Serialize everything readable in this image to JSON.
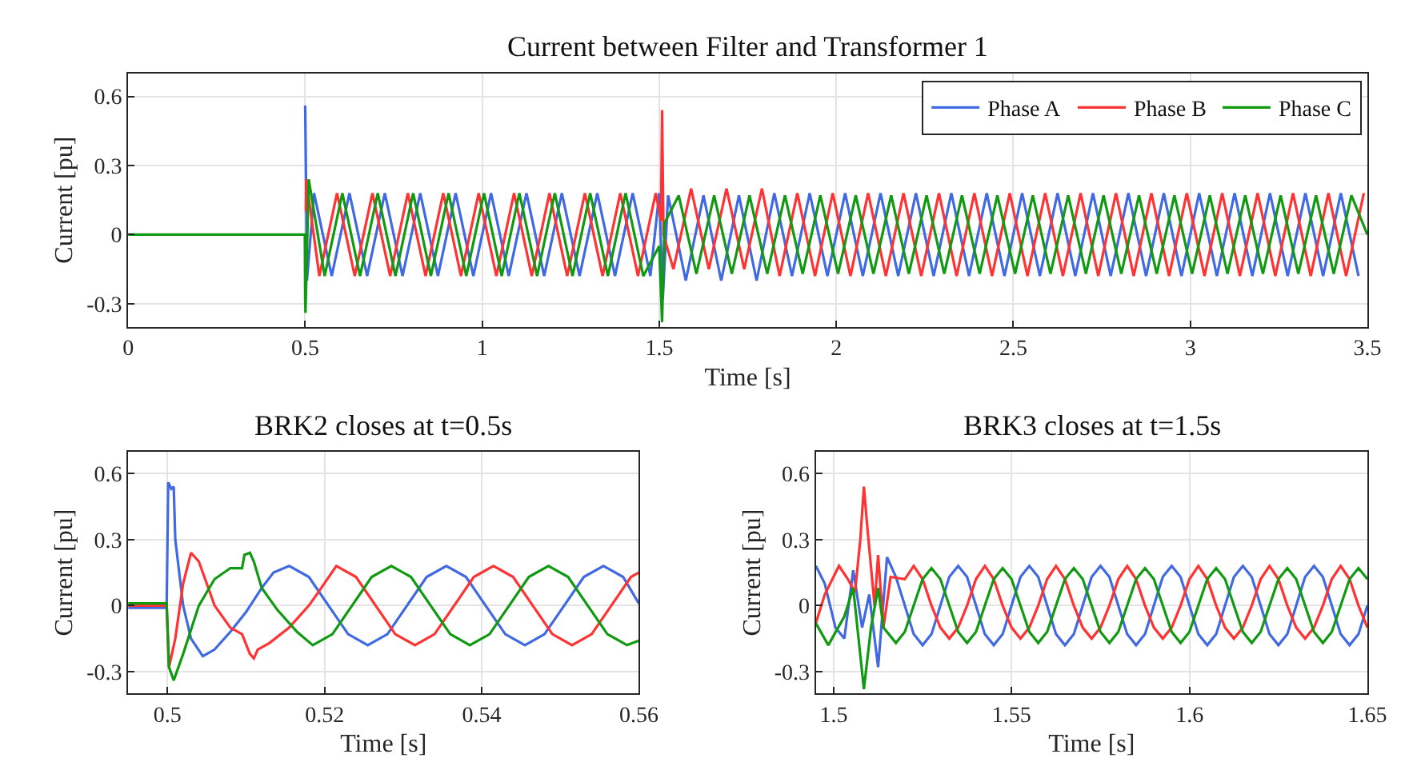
{
  "chart_data": [
    {
      "type": "line",
      "title": "Current between Filter and Transformer 1",
      "xlabel": "Time [s]",
      "ylabel": "Current [pu]",
      "xlim": [
        0,
        3.5
      ],
      "xticks": [
        0,
        0.5,
        1,
        1.5,
        2,
        2.5,
        3,
        3.5
      ],
      "ylim": [
        -0.4,
        0.7
      ],
      "yticks": [
        -0.3,
        0,
        0.3,
        0.6
      ],
      "grid": true,
      "legend": "top right",
      "series": [
        {
          "name": "Phase A",
          "color": "#4169e1",
          "x": [
            0.5,
            0.502,
            0.505,
            0.525,
            0.575,
            0.625,
            0.675,
            0.725,
            0.775,
            0.825,
            0.875,
            0.925,
            0.975,
            1.025,
            1.075,
            1.125,
            1.175,
            1.225,
            1.275,
            1.325,
            1.375,
            1.425,
            1.475,
            1.5,
            1.51,
            1.525,
            1.575,
            1.625,
            1.675,
            1.725,
            1.775,
            1.825,
            1.875,
            1.925,
            1.975,
            2.025,
            2.075,
            2.125,
            2.175,
            2.225,
            2.275,
            2.325,
            2.375,
            2.425,
            2.475,
            2.525,
            2.575,
            2.625,
            2.675,
            2.725,
            2.775,
            2.825,
            2.875,
            2.925,
            2.975,
            3.025,
            3.075,
            3.125,
            3.175,
            3.225,
            3.275,
            3.325,
            3.375,
            3.425,
            3.475
          ],
          "values": [
            0.56,
            0.3,
            -0.2,
            0.18,
            -0.18,
            0.18,
            -0.18,
            0.18,
            -0.18,
            0.18,
            -0.18,
            0.18,
            -0.18,
            0.18,
            -0.18,
            0.18,
            -0.18,
            0.18,
            -0.18,
            0.18,
            -0.18,
            0.18,
            -0.18,
            0.18,
            -0.28,
            0.17,
            -0.2,
            0.17,
            -0.2,
            0.17,
            -0.2,
            0.18,
            -0.18,
            0.18,
            -0.18,
            0.18,
            -0.18,
            0.18,
            -0.18,
            0.18,
            -0.18,
            0.18,
            -0.18,
            0.18,
            -0.18,
            0.18,
            -0.18,
            0.18,
            -0.18,
            0.18,
            -0.18,
            0.18,
            -0.18,
            0.18,
            -0.18,
            0.18,
            -0.18,
            0.18,
            -0.18,
            0.18,
            -0.18,
            0.18,
            -0.18,
            0.18,
            -0.18
          ]
        },
        {
          "name": "Phase B",
          "color": "#ff3333",
          "x": [
            0.502,
            0.503,
            0.54,
            0.59,
            0.64,
            0.69,
            0.74,
            0.79,
            0.84,
            0.89,
            0.94,
            0.99,
            1.04,
            1.09,
            1.14,
            1.19,
            1.24,
            1.29,
            1.34,
            1.39,
            1.44,
            1.49,
            1.505,
            1.508,
            1.512,
            1.54,
            1.59,
            1.64,
            1.69,
            1.74,
            1.79,
            1.84,
            1.89,
            1.94,
            1.99,
            2.04,
            2.09,
            2.14,
            2.19,
            2.24,
            2.29,
            2.34,
            2.39,
            2.44,
            2.49,
            2.54,
            2.59,
            2.64,
            2.69,
            2.74,
            2.79,
            2.84,
            2.89,
            2.94,
            2.99,
            3.04,
            3.09,
            3.14,
            3.19,
            3.24,
            3.29,
            3.34,
            3.39,
            3.44,
            3.49
          ],
          "values": [
            0.1,
            0.24,
            -0.18,
            0.18,
            -0.18,
            0.18,
            -0.18,
            0.18,
            -0.18,
            0.18,
            -0.18,
            0.18,
            -0.18,
            0.18,
            -0.18,
            0.18,
            -0.18,
            0.18,
            -0.18,
            0.18,
            -0.18,
            0.18,
            0.06,
            0.54,
            0,
            -0.15,
            0.2,
            -0.15,
            0.2,
            -0.15,
            0.2,
            -0.18,
            0.18,
            -0.18,
            0.18,
            -0.18,
            0.18,
            -0.18,
            0.18,
            -0.18,
            0.18,
            -0.18,
            0.18,
            -0.18,
            0.18,
            -0.18,
            0.18,
            -0.18,
            0.18,
            -0.18,
            0.18,
            -0.18,
            0.18,
            -0.18,
            0.18,
            -0.18,
            0.18,
            -0.18,
            0.18,
            -0.18,
            0.18,
            -0.18,
            0.18,
            -0.18,
            0.18
          ]
        },
        {
          "name": "Phase C",
          "color": "#119a11",
          "x": [
            0,
            0.4,
            0.499,
            0.5,
            0.5008,
            0.51,
            0.555,
            0.605,
            0.655,
            0.705,
            0.755,
            0.805,
            0.855,
            0.905,
            0.955,
            1.005,
            1.055,
            1.105,
            1.155,
            1.205,
            1.255,
            1.305,
            1.355,
            1.405,
            1.455,
            1.5,
            1.508,
            1.515,
            1.555,
            1.605,
            1.655,
            1.705,
            1.755,
            1.805,
            1.855,
            1.905,
            1.955,
            2.005,
            2.055,
            2.105,
            2.155,
            2.205,
            2.255,
            2.305,
            2.355,
            2.405,
            2.455,
            2.505,
            2.555,
            2.605,
            2.655,
            2.705,
            2.755,
            2.805,
            2.855,
            2.905,
            2.955,
            3.005,
            3.055,
            3.105,
            3.155,
            3.205,
            3.255,
            3.305,
            3.355,
            3.405,
            3.455,
            3.5
          ],
          "values": [
            0,
            0,
            0,
            -0.28,
            -0.34,
            0.24,
            -0.18,
            0.18,
            -0.18,
            0.18,
            -0.18,
            0.18,
            -0.18,
            0.18,
            -0.18,
            0.18,
            -0.18,
            0.18,
            -0.18,
            0.18,
            -0.18,
            0.18,
            -0.18,
            0.18,
            -0.18,
            -0.05,
            -0.38,
            0.05,
            0.17,
            -0.17,
            0.17,
            -0.17,
            0.17,
            -0.17,
            0.17,
            -0.17,
            0.17,
            -0.17,
            0.17,
            -0.17,
            0.17,
            -0.17,
            0.17,
            -0.17,
            0.17,
            -0.17,
            0.17,
            -0.17,
            0.17,
            -0.17,
            0.17,
            -0.17,
            0.17,
            -0.17,
            0.17,
            -0.17,
            0.17,
            -0.17,
            0.17,
            -0.17,
            0.17,
            -0.17,
            0.17,
            -0.17,
            0.17,
            -0.17,
            0.17,
            0
          ]
        }
      ]
    },
    {
      "type": "line",
      "title": "BRK2 closes at t=0.5s",
      "xlabel": "Time [s]",
      "ylabel": "Current [pu]",
      "xlim": [
        0.495,
        0.56
      ],
      "xticks": [
        0.5,
        0.52,
        0.54,
        0.56
      ],
      "ylim": [
        -0.4,
        0.7
      ],
      "yticks": [
        -0.3,
        0,
        0.3,
        0.6
      ],
      "grid": true,
      "series": [
        {
          "color": "#4169e1",
          "x": [
            0.495,
            0.4999,
            0.5001,
            0.5005,
            0.5008,
            0.501,
            0.502,
            0.503,
            0.5045,
            0.506,
            0.508,
            0.51,
            0.512,
            0.5135,
            0.5155,
            0.518,
            0.5205,
            0.523,
            0.5255,
            0.528,
            0.5305,
            0.533,
            0.5355,
            0.538,
            0.5405,
            0.543,
            0.5455,
            0.548,
            0.5505,
            0.553,
            0.5555,
            0.558,
            0.56
          ],
          "values": [
            -0.01,
            -0.01,
            0.56,
            0.53,
            0.54,
            0.3,
            0,
            -0.15,
            -0.23,
            -0.2,
            -0.12,
            -0.03,
            0.08,
            0.15,
            0.18,
            0.13,
            0,
            -0.13,
            -0.18,
            -0.13,
            0,
            0.13,
            0.18,
            0.13,
            0,
            -0.13,
            -0.18,
            -0.13,
            0,
            0.13,
            0.18,
            0.13,
            0.01
          ]
        },
        {
          "color": "#ff3333",
          "x": [
            0.495,
            0.4999,
            0.5002,
            0.501,
            0.502,
            0.503,
            0.504,
            0.506,
            0.508,
            0.5095,
            0.5105,
            0.511,
            0.5115,
            0.513,
            0.5155,
            0.518,
            0.519,
            0.5215,
            0.524,
            0.5265,
            0.529,
            0.5315,
            0.534,
            0.5365,
            0.539,
            0.5415,
            0.544,
            0.5465,
            0.549,
            0.5515,
            0.554,
            0.5565,
            0.559,
            0.56
          ],
          "values": [
            0,
            0,
            -0.28,
            -0.15,
            0.1,
            0.24,
            0.2,
            0,
            -0.1,
            -0.13,
            -0.22,
            -0.24,
            -0.2,
            -0.17,
            -0.1,
            0,
            0.05,
            0.18,
            0.13,
            0,
            -0.13,
            -0.18,
            -0.13,
            0,
            0.13,
            0.18,
            0.13,
            0,
            -0.13,
            -0.18,
            -0.13,
            0,
            0.13,
            0.15
          ]
        },
        {
          "color": "#119a11",
          "x": [
            0.495,
            0.4999,
            0.5002,
            0.5008,
            0.502,
            0.504,
            0.506,
            0.508,
            0.5095,
            0.5098,
            0.5105,
            0.511,
            0.512,
            0.514,
            0.5165,
            0.5185,
            0.521,
            0.5235,
            0.526,
            0.5285,
            0.531,
            0.5335,
            0.536,
            0.5385,
            0.541,
            0.5435,
            0.546,
            0.5485,
            0.551,
            0.5535,
            0.556,
            0.5585,
            0.56
          ],
          "values": [
            0.01,
            0.01,
            -0.28,
            -0.34,
            -0.22,
            0,
            0.12,
            0.17,
            0.17,
            0.23,
            0.24,
            0.2,
            0.08,
            -0.02,
            -0.12,
            -0.18,
            -0.13,
            0,
            0.13,
            0.18,
            0.13,
            0,
            -0.13,
            -0.18,
            -0.13,
            0,
            0.13,
            0.18,
            0.13,
            0,
            -0.13,
            -0.18,
            -0.16
          ]
        }
      ]
    },
    {
      "type": "line",
      "title": "BRK3 closes at t=1.5s",
      "xlabel": "Time [s]",
      "ylabel": "Current [pu]",
      "xlim": [
        1.495,
        1.65
      ],
      "xticks": [
        1.5,
        1.55,
        1.6,
        1.65
      ],
      "ylim": [
        -0.4,
        0.7
      ],
      "yticks": [
        -0.3,
        0,
        0.3,
        0.6
      ],
      "grid": true,
      "series": [
        {
          "color": "#4169e1",
          "x": [
            1.495,
            1.4975,
            1.5005,
            1.503,
            1.5055,
            1.508,
            1.51,
            1.5125,
            1.515,
            1.5175,
            1.52,
            1.5225,
            1.525,
            1.5275,
            1.53,
            1.5325,
            1.535,
            1.5375,
            1.54,
            1.5425,
            1.545,
            1.5475,
            1.55,
            1.5525,
            1.555,
            1.5575,
            1.56,
            1.5625,
            1.565,
            1.5675,
            1.57,
            1.5725,
            1.575,
            1.5775,
            1.58,
            1.5825,
            1.585,
            1.5875,
            1.59,
            1.5925,
            1.595,
            1.5975,
            1.6,
            1.6025,
            1.605,
            1.6075,
            1.61,
            1.6125,
            1.615,
            1.6175,
            1.62,
            1.6225,
            1.625,
            1.6275,
            1.63,
            1.6325,
            1.635,
            1.6375,
            1.64,
            1.6425,
            1.645,
            1.6475,
            1.65
          ],
          "values": [
            0.18,
            0.1,
            -0.1,
            -0.15,
            0.16,
            -0.1,
            0.05,
            -0.28,
            0.22,
            0.13,
            0,
            -0.13,
            -0.18,
            -0.13,
            0,
            0.13,
            0.18,
            0.13,
            0,
            -0.13,
            -0.18,
            -0.13,
            0,
            0.13,
            0.18,
            0.13,
            0,
            -0.13,
            -0.18,
            -0.13,
            0,
            0.13,
            0.18,
            0.13,
            0,
            -0.13,
            -0.18,
            -0.13,
            0,
            0.13,
            0.18,
            0.13,
            0,
            -0.13,
            -0.18,
            -0.13,
            0,
            0.13,
            0.18,
            0.13,
            0,
            -0.13,
            -0.18,
            -0.13,
            0,
            0.13,
            0.18,
            0.13,
            0,
            -0.13,
            -0.18,
            -0.13,
            0
          ]
        },
        {
          "color": "#ff3333",
          "x": [
            1.495,
            1.4975,
            1.5015,
            1.504,
            1.506,
            1.5075,
            1.5085,
            1.5095,
            1.5115,
            1.5125,
            1.514,
            1.516,
            1.52,
            1.5225,
            1.525,
            1.5275,
            1.53,
            1.5325,
            1.535,
            1.5375,
            1.54,
            1.5425,
            1.545,
            1.5475,
            1.55,
            1.5525,
            1.555,
            1.5575,
            1.56,
            1.5625,
            1.565,
            1.5675,
            1.57,
            1.5725,
            1.575,
            1.5775,
            1.58,
            1.5825,
            1.585,
            1.5875,
            1.59,
            1.5925,
            1.595,
            1.5975,
            1.6,
            1.6025,
            1.605,
            1.6075,
            1.61,
            1.6125,
            1.615,
            1.6175,
            1.62,
            1.6225,
            1.625,
            1.6275,
            1.63,
            1.6325,
            1.635,
            1.6375,
            1.64,
            1.6425,
            1.645,
            1.6475,
            1.65
          ],
          "values": [
            -0.08,
            0.05,
            0.18,
            0.12,
            0.06,
            0.3,
            0.54,
            0.35,
            0,
            0.23,
            -0.1,
            0.13,
            0.12,
            0.18,
            0.12,
            0,
            -0.1,
            -0.15,
            -0.1,
            0,
            0.12,
            0.18,
            0.12,
            0,
            -0.1,
            -0.15,
            -0.1,
            0,
            0.12,
            0.18,
            0.12,
            0,
            -0.1,
            -0.15,
            -0.1,
            0,
            0.12,
            0.18,
            0.12,
            0,
            -0.1,
            -0.15,
            -0.1,
            0,
            0.12,
            0.18,
            0.12,
            0,
            -0.1,
            -0.15,
            -0.1,
            0,
            0.12,
            0.18,
            0.12,
            0,
            -0.1,
            -0.15,
            -0.1,
            0,
            0.12,
            0.18,
            0.12,
            0,
            -0.1
          ]
        },
        {
          "color": "#119a11",
          "x": [
            1.495,
            1.4985,
            1.503,
            1.5055,
            1.507,
            1.5085,
            1.5105,
            1.5125,
            1.514,
            1.5175,
            1.52,
            1.5225,
            1.525,
            1.5275,
            1.53,
            1.5325,
            1.535,
            1.5375,
            1.54,
            1.5425,
            1.545,
            1.5475,
            1.55,
            1.5525,
            1.555,
            1.5575,
            1.56,
            1.5625,
            1.565,
            1.5675,
            1.57,
            1.5725,
            1.575,
            1.5775,
            1.58,
            1.5825,
            1.585,
            1.5875,
            1.59,
            1.5925,
            1.595,
            1.5975,
            1.6,
            1.6025,
            1.605,
            1.6075,
            1.61,
            1.6125,
            1.615,
            1.6175,
            1.62,
            1.6225,
            1.625,
            1.6275,
            1.63,
            1.6325,
            1.635,
            1.6375,
            1.64,
            1.6425,
            1.645,
            1.6475,
            1.65
          ],
          "values": [
            -0.08,
            -0.18,
            -0.05,
            0.08,
            -0.15,
            -0.38,
            -0.1,
            0.08,
            -0.1,
            -0.17,
            -0.12,
            0,
            0.12,
            0.17,
            0.12,
            0,
            -0.12,
            -0.17,
            -0.12,
            0,
            0.12,
            0.17,
            0.12,
            0,
            -0.12,
            -0.17,
            -0.12,
            0,
            0.12,
            0.17,
            0.12,
            0,
            -0.12,
            -0.17,
            -0.12,
            0,
            0.12,
            0.17,
            0.12,
            0,
            -0.12,
            -0.17,
            -0.12,
            0,
            0.12,
            0.17,
            0.12,
            0,
            -0.12,
            -0.17,
            -0.12,
            0,
            0.12,
            0.17,
            0.12,
            0,
            -0.12,
            -0.17,
            -0.12,
            0,
            0.12,
            0.17,
            0.12
          ]
        }
      ]
    }
  ]
}
